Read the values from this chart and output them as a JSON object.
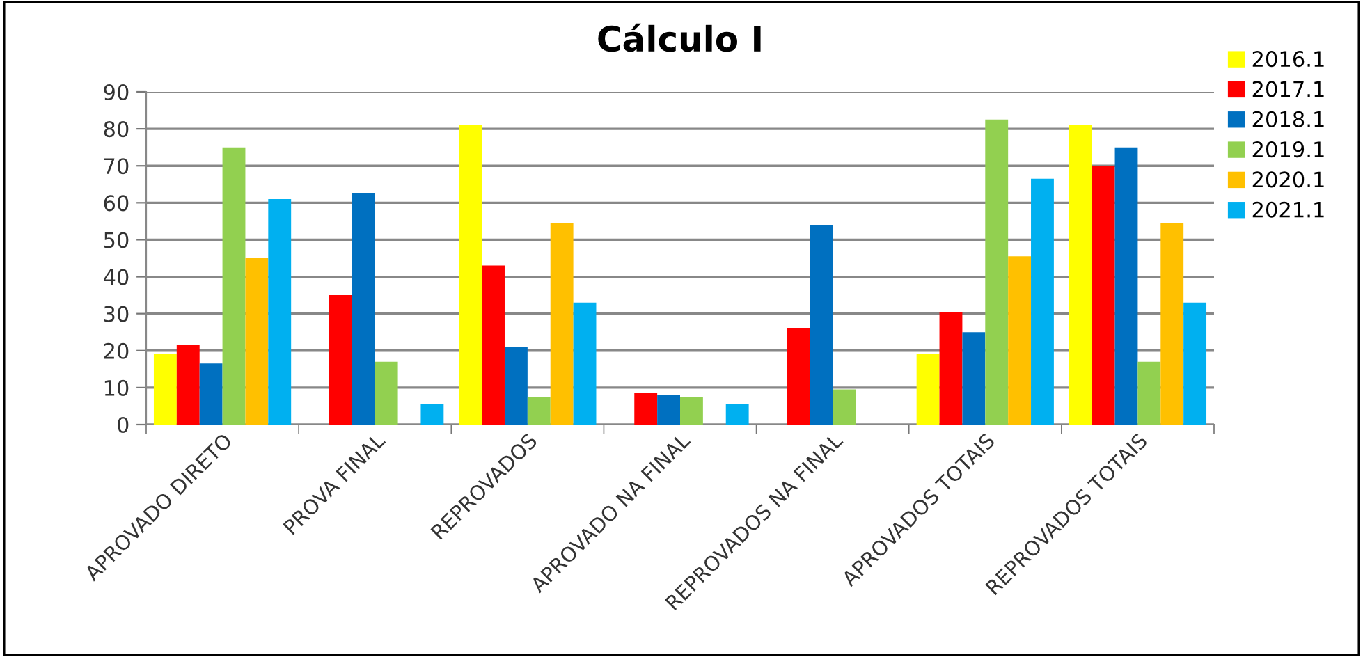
{
  "chart_data": {
    "type": "bar",
    "title": "Cálculo I",
    "categories": [
      "APROVADO DIRETO",
      "PROVA FINAL",
      "REPROVADOS",
      "APROVADO NA FINAL",
      "REPROVADOS NA FINAL",
      "APROVADOS TOTAIS",
      "REPROVADOS TOTAIS"
    ],
    "series": [
      {
        "name": "2016.1",
        "color": "#ffff00",
        "values": [
          19,
          0,
          81,
          0,
          0,
          19,
          81
        ]
      },
      {
        "name": "2017.1",
        "color": "#ff0000",
        "values": [
          21.5,
          35,
          43,
          8.5,
          26,
          30.5,
          70
        ]
      },
      {
        "name": "2018.1",
        "color": "#0070c0",
        "values": [
          16.5,
          62.5,
          21,
          8,
          54,
          25,
          75
        ]
      },
      {
        "name": "2019.1",
        "color": "#92d050",
        "values": [
          75,
          17,
          7.5,
          7.5,
          9.5,
          82.5,
          17
        ]
      },
      {
        "name": "2020.1",
        "color": "#ffc000",
        "values": [
          45,
          0,
          54.5,
          0,
          0,
          45.5,
          54.5
        ]
      },
      {
        "name": "2021.1",
        "color": "#00b0f0",
        "values": [
          61,
          5.5,
          33,
          5.5,
          0,
          66.5,
          33
        ]
      }
    ],
    "ylim": [
      0,
      90
    ],
    "yticks": [
      0,
      10,
      20,
      30,
      40,
      50,
      60,
      70,
      80,
      90
    ],
    "grid": "y",
    "legend": "right"
  }
}
